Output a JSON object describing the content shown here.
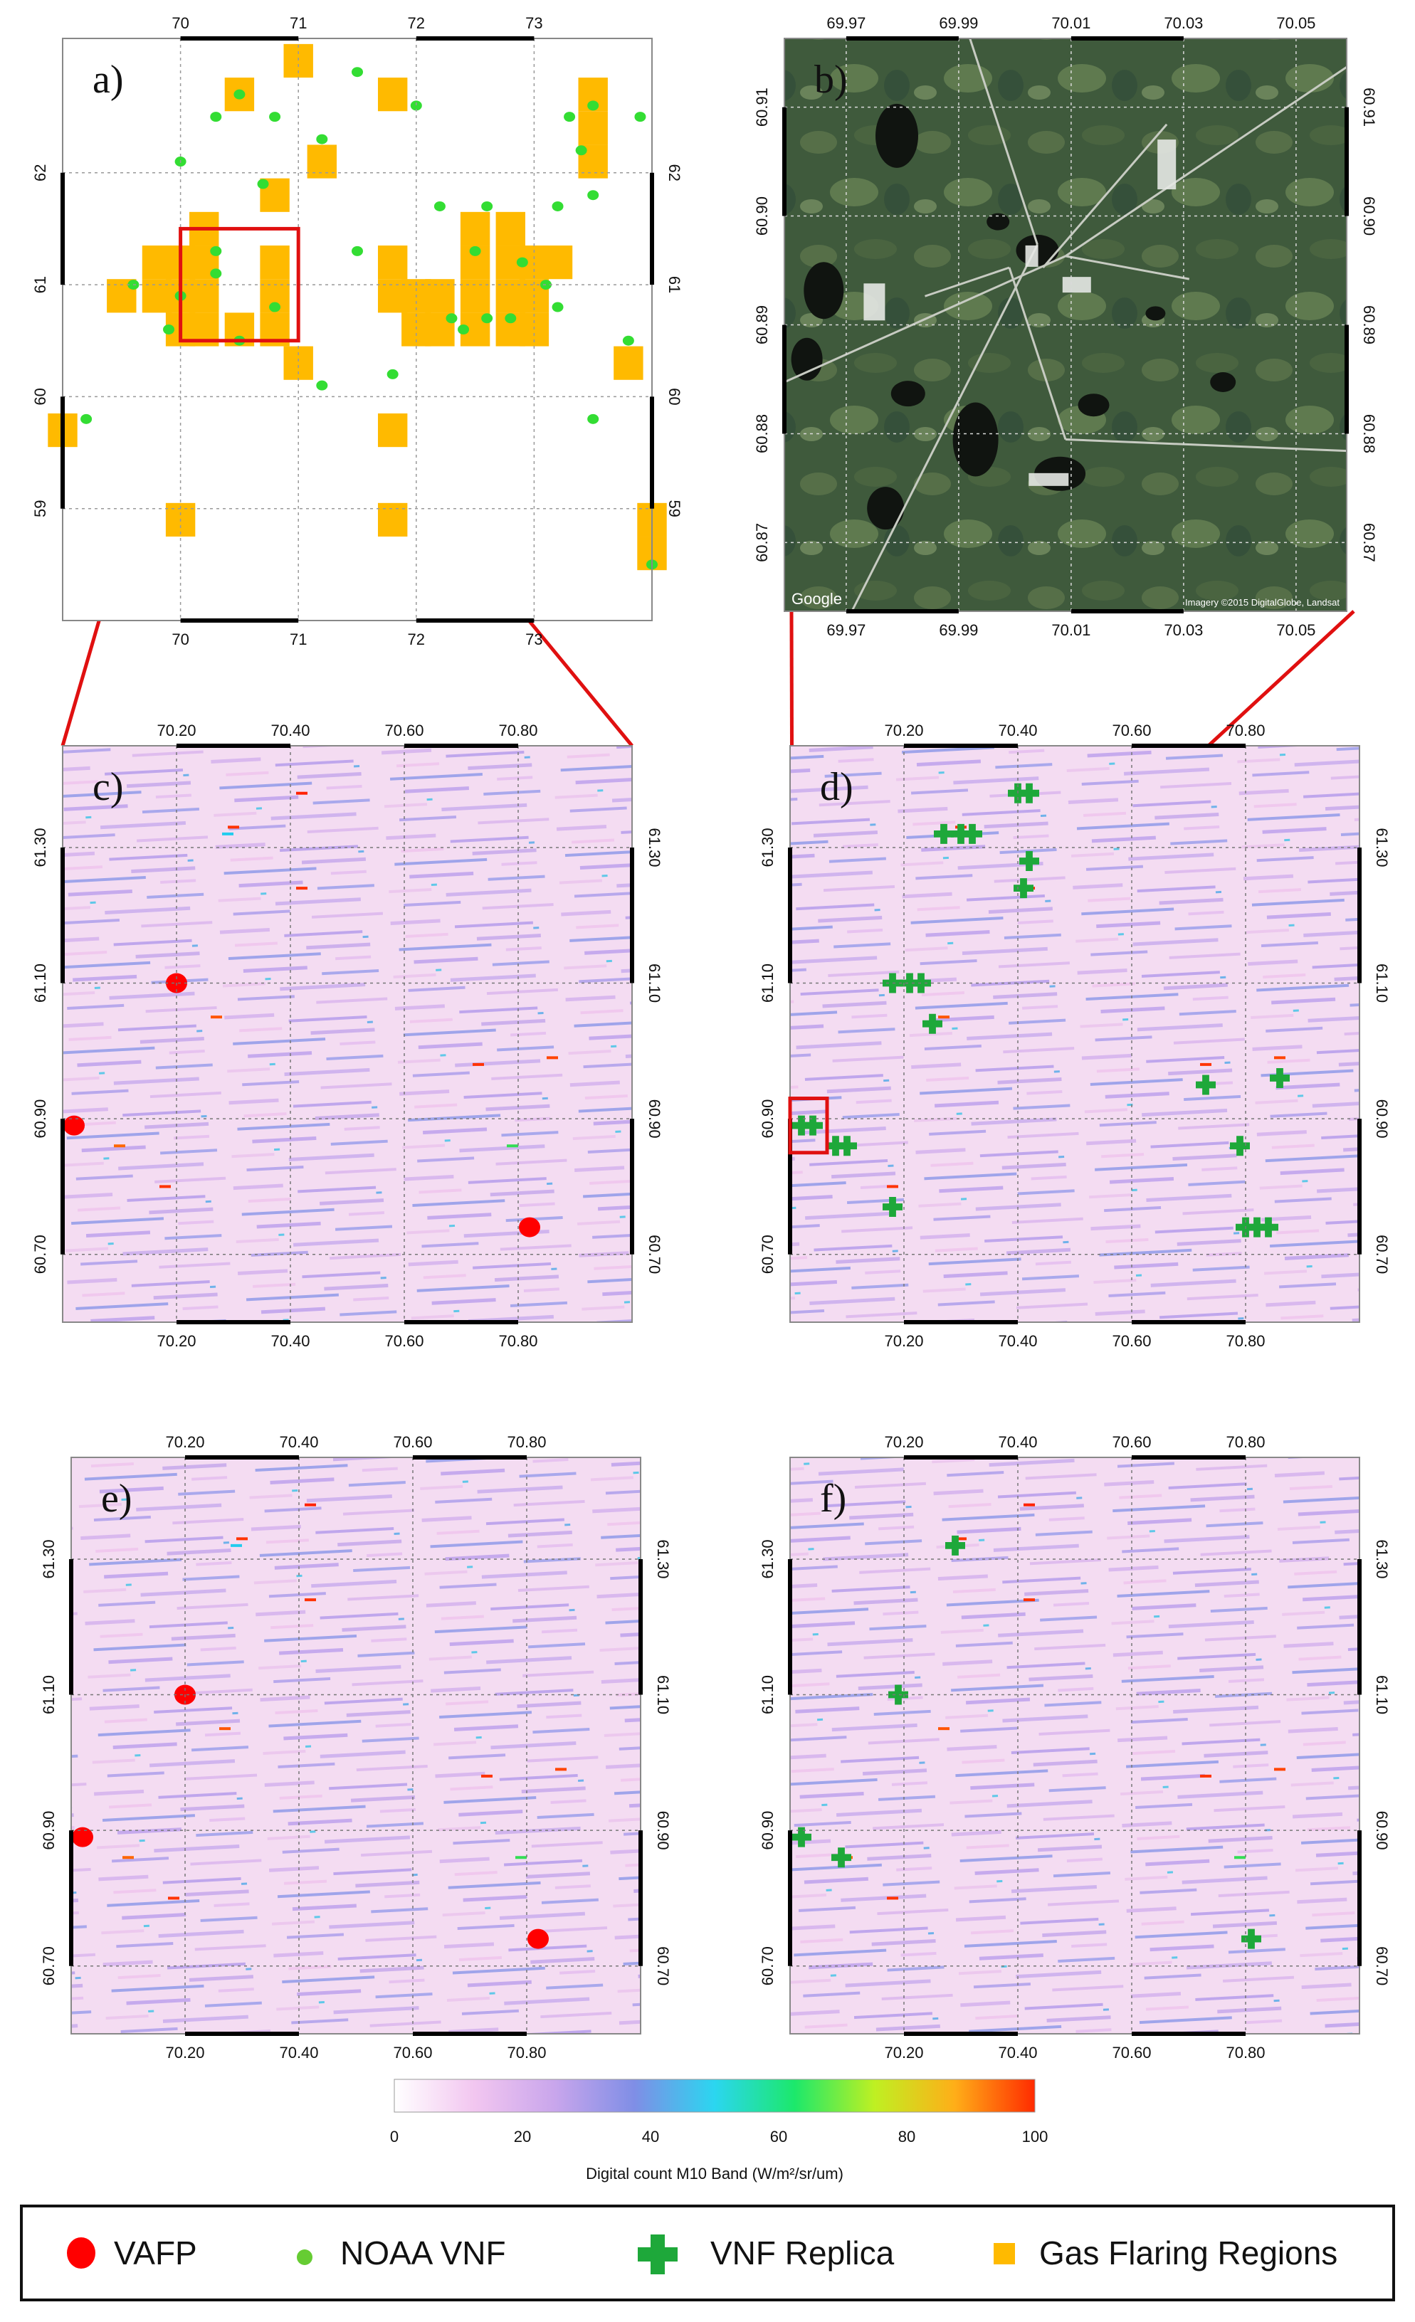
{
  "colors": {
    "vafp": "#ff0000",
    "noaa_vnf": "#33dd33",
    "vnf_replica": "#1ea83a",
    "gas_flaring": "#ffba00",
    "zoom_lines": "#e01010"
  },
  "chart_data": [
    {
      "panel": "a",
      "type": "scatter",
      "label": "a)",
      "x_ticks": [
        "70",
        "71",
        "72",
        "73"
      ],
      "y_ticks": [
        "62",
        "61",
        "60",
        "59"
      ],
      "xlim": [
        69.0,
        74.0
      ],
      "ylim": [
        58.0,
        63.2
      ],
      "gas_flaring_cells": [
        [
          71.0,
          63.0
        ],
        [
          70.5,
          62.7
        ],
        [
          71.8,
          62.7
        ],
        [
          73.5,
          62.7
        ],
        [
          73.5,
          62.4
        ],
        [
          73.5,
          62.1
        ],
        [
          71.2,
          62.1
        ],
        [
          70.8,
          61.8
        ],
        [
          70.2,
          61.5
        ],
        [
          72.5,
          61.5
        ],
        [
          72.8,
          61.5
        ],
        [
          69.8,
          61.2
        ],
        [
          70.0,
          61.2
        ],
        [
          70.2,
          61.2
        ],
        [
          70.8,
          61.2
        ],
        [
          71.8,
          61.2
        ],
        [
          72.5,
          61.2
        ],
        [
          72.8,
          61.2
        ],
        [
          73.0,
          61.2
        ],
        [
          73.2,
          61.2
        ],
        [
          69.5,
          60.9
        ],
        [
          69.8,
          60.9
        ],
        [
          70.0,
          60.9
        ],
        [
          70.2,
          60.9
        ],
        [
          70.8,
          60.9
        ],
        [
          71.8,
          60.9
        ],
        [
          72.0,
          60.9
        ],
        [
          72.2,
          60.9
        ],
        [
          72.5,
          60.9
        ],
        [
          72.8,
          60.9
        ],
        [
          73.0,
          60.9
        ],
        [
          70.0,
          60.6
        ],
        [
          70.2,
          60.6
        ],
        [
          70.5,
          60.6
        ],
        [
          70.8,
          60.6
        ],
        [
          72.0,
          60.6
        ],
        [
          72.2,
          60.6
        ],
        [
          72.5,
          60.6
        ],
        [
          72.8,
          60.6
        ],
        [
          73.0,
          60.6
        ],
        [
          71.0,
          60.3
        ],
        [
          73.8,
          60.3
        ],
        [
          69.0,
          59.7
        ],
        [
          71.8,
          59.7
        ],
        [
          70.0,
          58.9
        ],
        [
          71.8,
          58.9
        ],
        [
          74.0,
          58.9
        ],
        [
          74.0,
          58.6
        ]
      ],
      "noaa_vnf": [
        [
          70.5,
          62.7
        ],
        [
          70.3,
          62.5
        ],
        [
          70.8,
          62.5
        ],
        [
          71.5,
          62.9
        ],
        [
          72.0,
          62.6
        ],
        [
          73.3,
          62.5
        ],
        [
          73.5,
          62.6
        ],
        [
          73.9,
          62.5
        ],
        [
          73.4,
          62.2
        ],
        [
          70.0,
          62.1
        ],
        [
          71.2,
          62.3
        ],
        [
          70.7,
          61.9
        ],
        [
          72.2,
          61.7
        ],
        [
          72.6,
          61.7
        ],
        [
          73.2,
          61.7
        ],
        [
          73.5,
          61.8
        ],
        [
          70.3,
          61.3
        ],
        [
          71.5,
          61.3
        ],
        [
          72.5,
          61.3
        ],
        [
          72.9,
          61.2
        ],
        [
          73.1,
          61.0
        ],
        [
          70.3,
          61.1
        ],
        [
          70.0,
          60.9
        ],
        [
          70.8,
          60.8
        ],
        [
          69.9,
          60.6
        ],
        [
          70.5,
          60.5
        ],
        [
          72.3,
          60.7
        ],
        [
          72.6,
          60.7
        ],
        [
          72.8,
          60.7
        ],
        [
          73.2,
          60.8
        ],
        [
          72.4,
          60.6
        ],
        [
          71.8,
          60.2
        ],
        [
          73.8,
          60.5
        ],
        [
          69.2,
          59.8
        ],
        [
          73.5,
          59.8
        ],
        [
          71.2,
          60.1
        ],
        [
          69.6,
          61.0
        ],
        [
          74.0,
          58.5
        ]
      ]
    },
    {
      "panel": "b",
      "type": "map",
      "label": "b)",
      "x_ticks": [
        "69.97",
        "69.99",
        "70.01",
        "70.03",
        "70.05"
      ],
      "y_ticks": [
        "60.91",
        "60.90",
        "60.89",
        "60.88",
        "60.87"
      ],
      "attribution_left": "Google",
      "attribution_right": "Imagery ©2015 DigitalGlobe, Landsat"
    },
    {
      "panel": "c",
      "type": "heatmap",
      "label": "c)",
      "x_ticks": [
        "70.20",
        "70.40",
        "70.60",
        "70.80"
      ],
      "y_ticks": [
        "61.30",
        "61.10",
        "60.90",
        "60.70"
      ],
      "xlim": [
        70.0,
        71.0
      ],
      "ylim": [
        60.6,
        61.45
      ],
      "vafp": [
        [
          70.2,
          61.1
        ],
        [
          70.02,
          60.89
        ],
        [
          70.82,
          60.74
        ]
      ]
    },
    {
      "panel": "d",
      "type": "heatmap",
      "label": "d)",
      "x_ticks": [
        "70.20",
        "70.40",
        "70.60",
        "70.80"
      ],
      "y_ticks": [
        "61.30",
        "61.10",
        "60.90",
        "60.70"
      ],
      "xlim": [
        70.0,
        71.0
      ],
      "ylim": [
        60.6,
        61.45
      ],
      "vnf_replica": [
        [
          70.4,
          61.38
        ],
        [
          70.42,
          61.38
        ],
        [
          70.27,
          61.32
        ],
        [
          70.3,
          61.32
        ],
        [
          70.32,
          61.32
        ],
        [
          70.42,
          61.28
        ],
        [
          70.41,
          61.24
        ],
        [
          70.18,
          61.1
        ],
        [
          70.21,
          61.1
        ],
        [
          70.23,
          61.1
        ],
        [
          70.25,
          61.04
        ],
        [
          70.02,
          60.89
        ],
        [
          70.04,
          60.89
        ],
        [
          70.08,
          60.86
        ],
        [
          70.1,
          60.86
        ],
        [
          70.73,
          60.95
        ],
        [
          70.86,
          60.96
        ],
        [
          70.79,
          60.86
        ],
        [
          70.18,
          60.77
        ],
        [
          70.8,
          60.74
        ],
        [
          70.82,
          60.74
        ],
        [
          70.84,
          60.74
        ]
      ]
    },
    {
      "panel": "e",
      "type": "heatmap",
      "label": "e)",
      "x_ticks": [
        "70.20",
        "70.40",
        "70.60",
        "70.80"
      ],
      "y_ticks": [
        "61.30",
        "61.10",
        "60.90",
        "60.70"
      ],
      "xlim": [
        70.0,
        71.0
      ],
      "ylim": [
        60.6,
        61.45
      ],
      "vafp": [
        [
          70.2,
          61.1
        ],
        [
          70.02,
          60.89
        ],
        [
          70.82,
          60.74
        ]
      ]
    },
    {
      "panel": "f",
      "type": "heatmap",
      "label": "f)",
      "x_ticks": [
        "70.20",
        "70.40",
        "70.60",
        "70.80"
      ],
      "y_ticks": [
        "61.30",
        "61.10",
        "60.90",
        "60.70"
      ],
      "xlim": [
        70.0,
        71.0
      ],
      "ylim": [
        60.6,
        61.45
      ],
      "vnf_replica": [
        [
          70.29,
          61.32
        ],
        [
          70.19,
          61.1
        ],
        [
          70.02,
          60.89
        ],
        [
          70.09,
          60.86
        ],
        [
          70.81,
          60.74
        ]
      ]
    }
  ],
  "colorbar": {
    "ticks": [
      "0",
      "20",
      "40",
      "60",
      "80",
      "100"
    ],
    "values": [
      0,
      20,
      40,
      60,
      80,
      100
    ],
    "label": "Digital count M10 Band (W/m²/sr/um)",
    "stops": [
      "#ffffff",
      "#f2c6f0",
      "#c9a6ec",
      "#7f8ee6",
      "#2bd6f0",
      "#1ce86b",
      "#bff022",
      "#ffae18",
      "#ff2b00"
    ]
  },
  "legend": {
    "position": "bottom",
    "items": [
      {
        "name": "VAFP",
        "symbol": "circle",
        "color": "#ff0000"
      },
      {
        "name": "NOAA VNF",
        "symbol": "small-dot",
        "color": "#66cc33"
      },
      {
        "name": "VNF Replica",
        "symbol": "cross",
        "color": "#1ea83a"
      },
      {
        "name": "Gas Flaring Regions",
        "symbol": "square",
        "color": "#ffba00"
      }
    ]
  }
}
